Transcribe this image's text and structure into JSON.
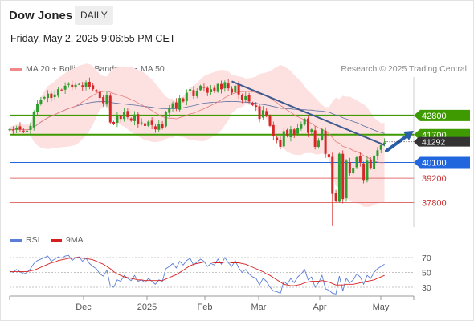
{
  "header": {
    "title": "Dow Jones",
    "period_label": "DAILY",
    "timestamp": "Friday, May 2, 2025 9:06:55 PM CET"
  },
  "legend_top": [
    {
      "label": "MA 20 + Bollinger Bands",
      "color": "#f08a8a"
    },
    {
      "label": "MA 50",
      "color": "#3f5a8f"
    }
  ],
  "credit": "Research © 2025 Trading Central",
  "legend_bottom": [
    {
      "label": "RSI",
      "color": "#5b7fd6"
    },
    {
      "label": "9MA",
      "color": "#d62020"
    }
  ],
  "colors": {
    "up": "#2e9e2e",
    "down": "#d62727",
    "resistance": "#3e9a00",
    "pivot": "#2266dd",
    "support": "#e07070",
    "arrow": "#2a5fa8",
    "band": "#fde0e0"
  },
  "chart_data": [
    {
      "type": "candlestick",
      "title": "Dow Jones",
      "xlabel": "",
      "ylabel": "",
      "x_ticks": [
        "Dec",
        "2025",
        "Feb",
        "Mar",
        "Apr",
        "May"
      ],
      "ylim": [
        36400,
        45000
      ],
      "last_price": "41292",
      "levels": [
        {
          "label": "42800",
          "value": 42800,
          "kind": "resistance"
        },
        {
          "label": "41700",
          "value": 41700,
          "kind": "resistance"
        },
        {
          "label": "40100",
          "value": 40100,
          "kind": "pivot"
        },
        {
          "label": "39200",
          "value": 39200,
          "kind": "support"
        },
        {
          "label": "37800",
          "value": 37800,
          "kind": "support"
        }
      ],
      "closes": [
        42010,
        41950,
        42100,
        41980,
        41880,
        41920,
        42200,
        43000,
        43450,
        43700,
        43850,
        44050,
        43800,
        44000,
        44300,
        44250,
        44500,
        44600,
        44400,
        44550,
        44600,
        44450,
        44700,
        44450,
        44300,
        44150,
        43800,
        43500,
        43950,
        42400,
        42300,
        42800,
        42600,
        43000,
        42700,
        42500,
        42850,
        42300,
        42400,
        42200,
        42450,
        42250,
        42000,
        42300,
        42100,
        43000,
        43200,
        43500,
        43200,
        43800,
        43600,
        44100,
        44300,
        43900,
        44200,
        44500,
        44400,
        44100,
        44300,
        44200,
        44600,
        44300,
        44700,
        44350,
        44100,
        44500,
        44000,
        43700,
        43900,
        43600,
        43400,
        43300,
        42600,
        43100,
        42800,
        42200,
        41600,
        41400,
        41000,
        41900,
        41600,
        42000,
        41700,
        42100,
        42300,
        42600,
        41800,
        42000,
        41000,
        41350,
        42000,
        40600,
        40400,
        38300,
        37900,
        40600,
        38000,
        40200,
        39500,
        39800,
        40400,
        40100,
        39100,
        40200,
        39800,
        40500,
        40800,
        41100,
        41250
      ]
    },
    {
      "type": "line",
      "title": "",
      "xlabel": "",
      "ylabel": "",
      "x_ticks": [
        "Dec",
        "2025",
        "Feb",
        "Mar",
        "Apr",
        "May"
      ],
      "y_ticks": [
        "70",
        "50",
        "30"
      ],
      "ylim": [
        20,
        80
      ],
      "series": [
        {
          "name": "RSI",
          "values": [
            52,
            50,
            54,
            51,
            48,
            50,
            55,
            62,
            66,
            68,
            70,
            72,
            65,
            68,
            71,
            69,
            72,
            73,
            66,
            70,
            71,
            65,
            69,
            62,
            58,
            55,
            48,
            45,
            53,
            32,
            30,
            40,
            38,
            46,
            42,
            39,
            46,
            38,
            40,
            36,
            42,
            38,
            34,
            40,
            38,
            55,
            58,
            62,
            56,
            65,
            60,
            66,
            69,
            60,
            64,
            68,
            65,
            58,
            62,
            60,
            68,
            61,
            70,
            63,
            58,
            66,
            56,
            50,
            54,
            48,
            44,
            42,
            33,
            42,
            38,
            30,
            25,
            24,
            22,
            38,
            34,
            42,
            36,
            44,
            48,
            54,
            40,
            44,
            30,
            36,
            46,
            28,
            26,
            22,
            21,
            45,
            25,
            42,
            36,
            40,
            48,
            44,
            34,
            46,
            42,
            50,
            55,
            58,
            61
          ]
        },
        {
          "name": "9MA",
          "values": [
            51,
            51,
            51,
            51,
            51,
            51,
            52,
            53,
            55,
            57,
            59,
            61,
            63,
            64,
            66,
            67,
            68,
            69,
            69,
            70,
            70,
            69,
            69,
            68,
            67,
            65,
            63,
            61,
            58,
            55,
            51,
            48,
            46,
            44,
            43,
            42,
            41,
            40,
            40,
            39,
            39,
            39,
            39,
            39,
            39,
            41,
            43,
            45,
            47,
            50,
            53,
            56,
            59,
            61,
            62,
            63,
            64,
            64,
            64,
            63,
            63,
            63,
            64,
            64,
            63,
            63,
            63,
            62,
            61,
            59,
            57,
            55,
            53,
            51,
            48,
            46,
            43,
            40,
            37,
            34,
            33,
            32,
            32,
            33,
            34,
            36,
            37,
            38,
            38,
            38,
            39,
            38,
            37,
            35,
            33,
            33,
            33,
            34,
            34,
            34,
            35,
            36,
            37,
            38,
            39,
            40,
            42,
            44,
            46
          ]
        }
      ]
    }
  ]
}
